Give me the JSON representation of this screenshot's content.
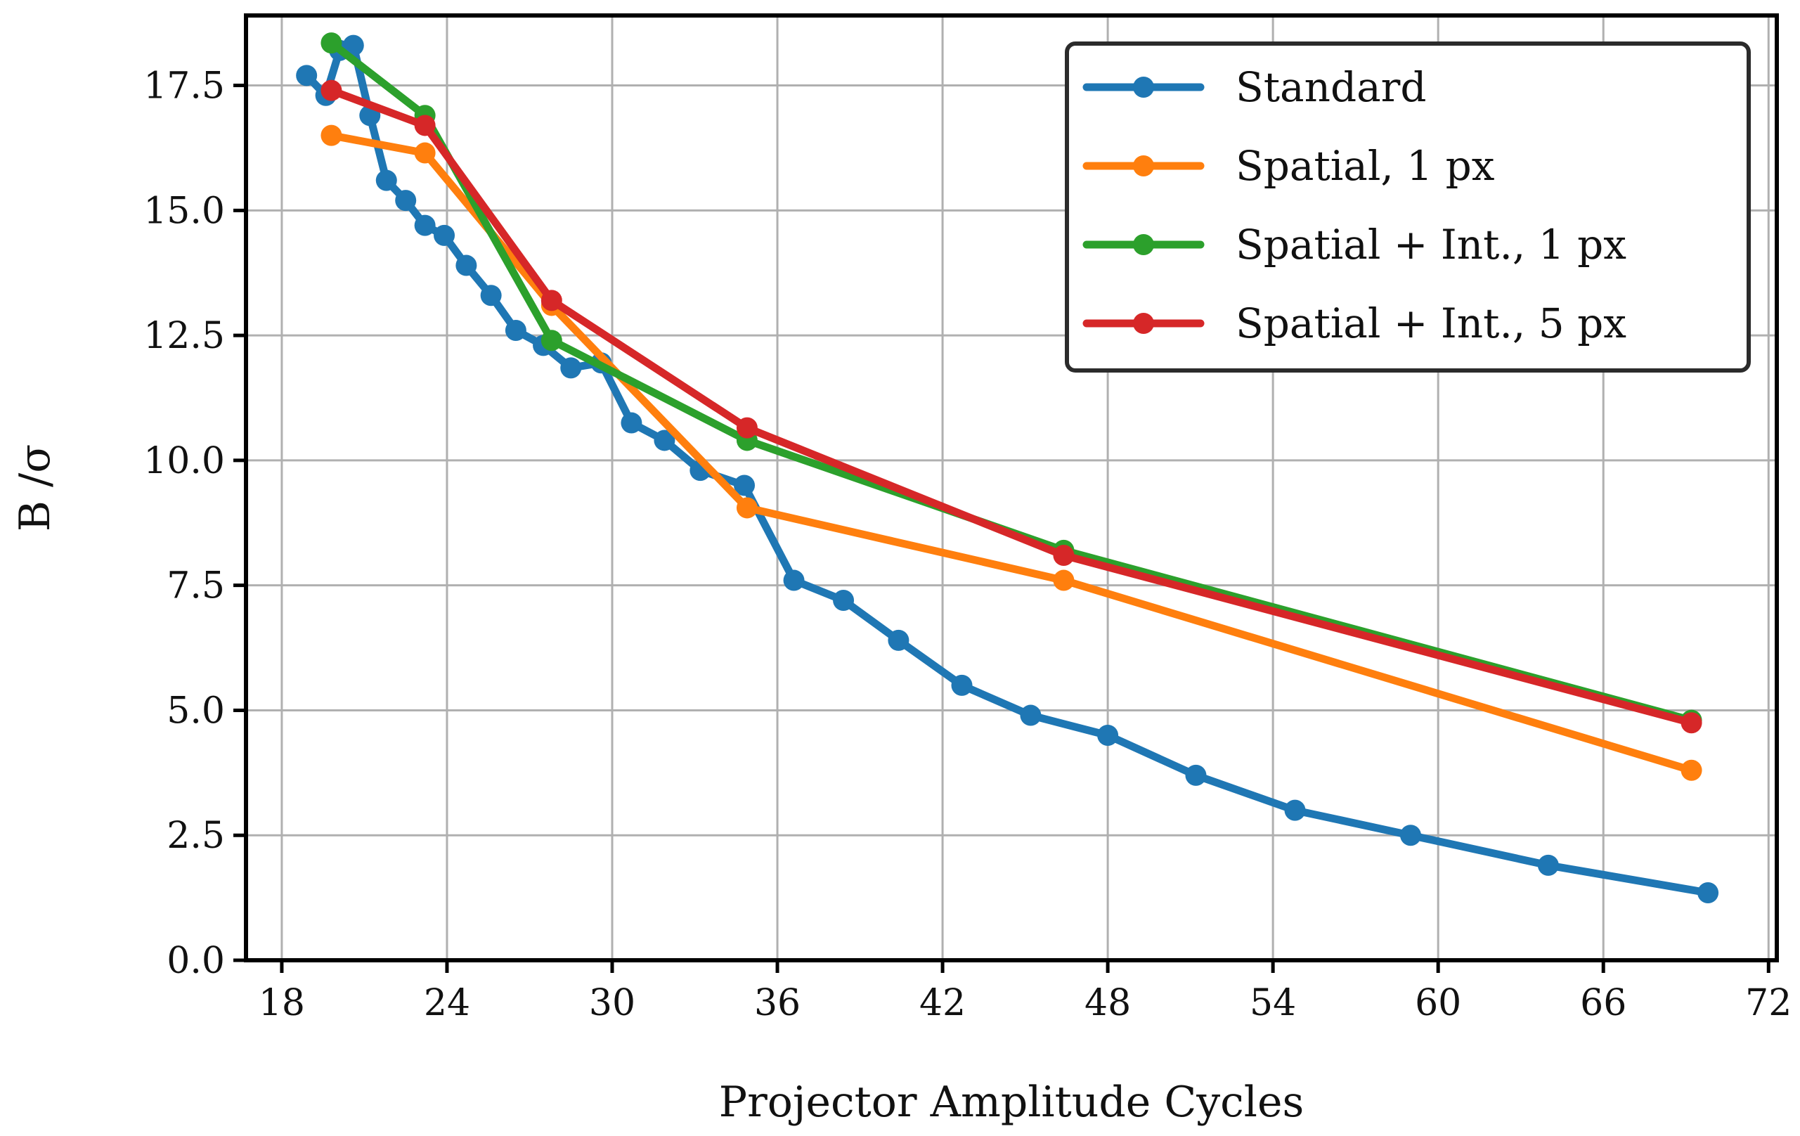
{
  "chart_data": {
    "type": "line",
    "title": "",
    "xlabel": "Projector Amplitude Cycles",
    "ylabel": "B /σ",
    "xlim": [
      16.7,
      72.3
    ],
    "ylim": [
      0,
      18.9
    ],
    "xticks": [
      18,
      24,
      30,
      36,
      42,
      48,
      54,
      60,
      66,
      72
    ],
    "yticks": [
      0.0,
      2.5,
      5.0,
      7.5,
      10.0,
      12.5,
      15.0,
      17.5
    ],
    "xtick_labels": [
      "18",
      "24",
      "30",
      "36",
      "42",
      "48",
      "54",
      "60",
      "66",
      "72"
    ],
    "ytick_labels": [
      "0.0",
      "2.5",
      "5.0",
      "7.5",
      "10.0",
      "12.5",
      "15.0",
      "17.5"
    ],
    "grid": true,
    "legend_position": "top-right",
    "series": [
      {
        "name": "Standard",
        "color": "#1f77b4",
        "x": [
          18.9,
          19.6,
          20.1,
          20.6,
          21.2,
          21.8,
          22.5,
          23.2,
          23.9,
          24.7,
          25.6,
          26.5,
          27.5,
          28.5,
          29.6,
          30.7,
          31.9,
          33.2,
          34.8,
          36.6,
          38.4,
          40.4,
          42.7,
          45.2,
          48.0,
          51.2,
          54.8,
          59.0,
          64.0,
          69.8
        ],
        "y": [
          17.7,
          17.3,
          18.2,
          18.3,
          16.9,
          15.6,
          15.2,
          14.7,
          14.5,
          13.9,
          13.3,
          12.6,
          12.3,
          11.85,
          11.95,
          10.75,
          10.4,
          9.8,
          9.5,
          7.6,
          7.2,
          6.4,
          5.5,
          4.9,
          4.5,
          3.7,
          3.0,
          2.5,
          1.9,
          1.35
        ]
      },
      {
        "name": "Spatial, 1 px",
        "color": "#ff7f0e",
        "x": [
          19.8,
          23.2,
          27.8,
          34.9,
          46.4,
          69.2
        ],
        "y": [
          16.5,
          16.15,
          13.1,
          9.05,
          7.6,
          3.8
        ]
      },
      {
        "name": "Spatial + Int., 1 px",
        "color": "#2ca02c",
        "x": [
          19.8,
          23.2,
          27.8,
          34.9,
          46.4,
          69.2
        ],
        "y": [
          18.35,
          16.9,
          12.4,
          10.4,
          8.2,
          4.8
        ]
      },
      {
        "name": "Spatial + Int., 5 px",
        "color": "#d62728",
        "x": [
          19.8,
          23.2,
          27.8,
          34.9,
          46.4,
          69.2
        ],
        "y": [
          17.4,
          16.7,
          13.2,
          10.65,
          8.1,
          4.75
        ]
      }
    ]
  }
}
